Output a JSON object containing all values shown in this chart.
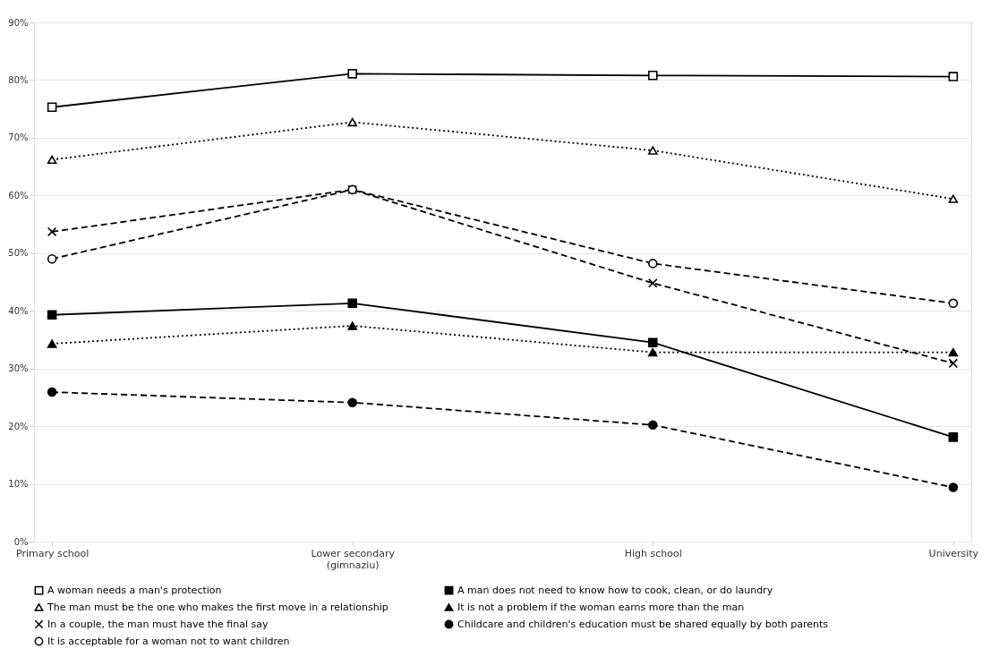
{
  "chart_data": {
    "type": "line",
    "categories": [
      "Primary school",
      "Lower secondary\n(gimnaziu)",
      "High school",
      "University"
    ],
    "ylim": [
      0,
      90
    ],
    "yticks": [
      {
        "value": 0,
        "label": "0%"
      },
      {
        "value": 10,
        "label": "10%"
      },
      {
        "value": 20,
        "label": "20%"
      },
      {
        "value": 30,
        "label": "30%"
      },
      {
        "value": 40,
        "label": "40%"
      },
      {
        "value": 50,
        "label": "50%"
      },
      {
        "value": 60,
        "label": "60%"
      },
      {
        "value": 70,
        "label": "70%"
      },
      {
        "value": 80,
        "label": "80%"
      },
      {
        "value": 90,
        "label": "90%"
      }
    ],
    "grid": "y",
    "legend": "bottom",
    "series": [
      {
        "name": "A woman needs a man's protection",
        "color": "#000000",
        "marker": "square",
        "colors": [
          "#ffffff",
          "#ffffff",
          "#ffffff",
          "#ffffff"
        ],
        "line_style": "solid",
        "values": [
          75.3,
          81.1,
          80.8,
          80.6
        ]
      },
      {
        "name": "The man must be the one who makes the first move in a relationship",
        "color": "#000000",
        "marker": "triangle",
        "colors": [
          "#ffffff",
          "#ffffff",
          "#ffffff",
          "#ffffff"
        ],
        "line_style": "dotted",
        "values": [
          66.2,
          72.7,
          67.8,
          59.4
        ]
      },
      {
        "name": "In a couple, the man must have the final say",
        "color": "#000000",
        "marker": "cross",
        "line_style": "dashed",
        "values": [
          53.7,
          61.0,
          44.8,
          30.9
        ]
      },
      {
        "name": "It is acceptable for a woman not to want children",
        "color": "#000000",
        "marker": "circle",
        "colors": [
          "#ffffff",
          "#ffffff",
          "#ffffff",
          "#ffffff"
        ],
        "line_style": "dashed",
        "values": [
          49.0,
          61.0,
          48.2,
          41.3
        ]
      },
      {
        "name": "A man does not need to know how to cook, clean, or do laundry",
        "color": "#000000",
        "marker": "square",
        "line_style": "solid",
        "values": [
          39.3,
          41.3,
          34.5,
          18.1
        ]
      },
      {
        "name": "It is not a problem if the woman earns more than the man",
        "color": "#000000",
        "marker": "triangle",
        "line_style": "dotted",
        "values": [
          34.3,
          37.4,
          32.8,
          32.8
        ]
      },
      {
        "name": "Childcare and children's education must be shared equally by both parents",
        "color": "#000000",
        "marker": "circle",
        "line_style": "dashed",
        "values": [
          25.9,
          24.1,
          20.2,
          9.4
        ]
      }
    ]
  }
}
